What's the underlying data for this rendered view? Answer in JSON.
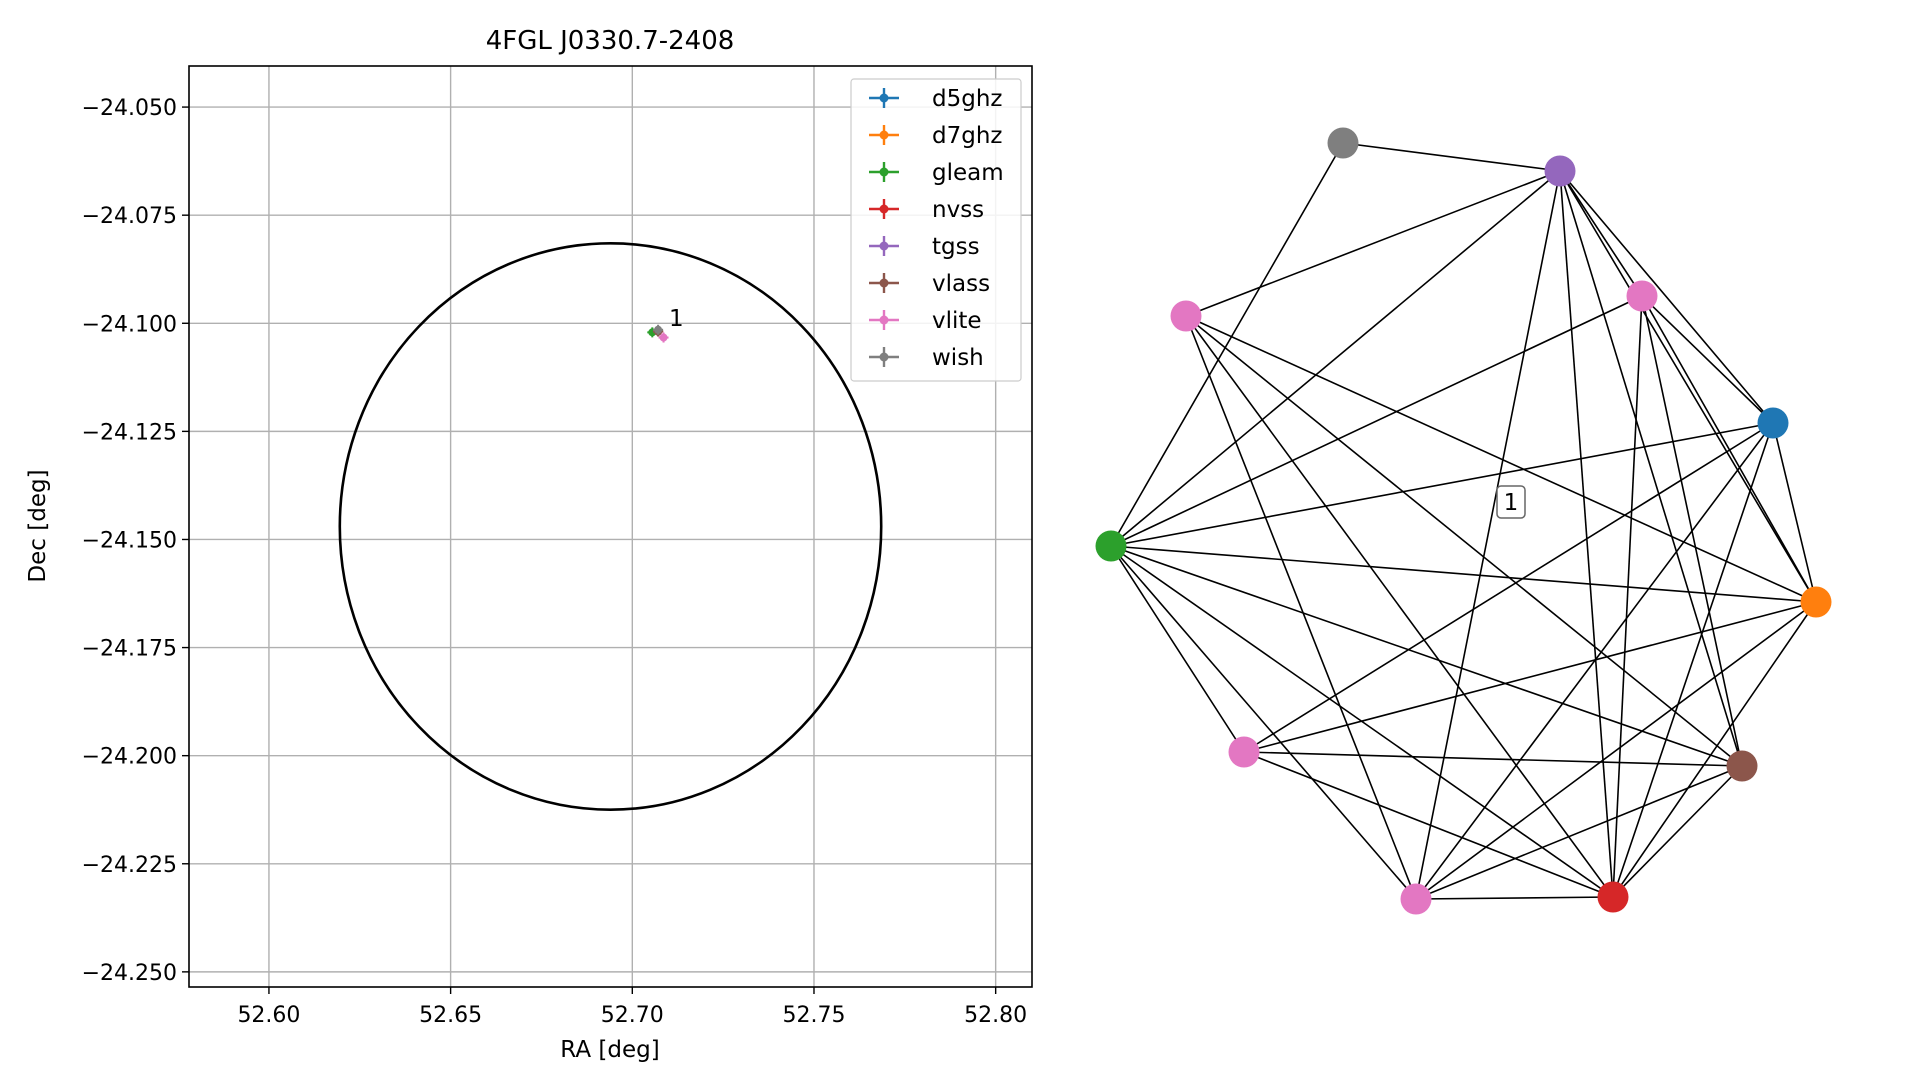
{
  "chart_data": [
    {
      "type": "scatter",
      "title": "4FGL J0330.7-2408",
      "xlabel": "RA [deg]",
      "ylabel": "Dec [deg]",
      "xlim": [
        52.578,
        52.81
      ],
      "ylim": [
        -24.2535,
        -24.0405
      ],
      "xticks": [
        52.6,
        52.65,
        52.7,
        52.75,
        52.8
      ],
      "xtick_labels": [
        "52.60",
        "52.65",
        "52.70",
        "52.75",
        "52.80"
      ],
      "yticks": [
        -24.05,
        -24.075,
        -24.1,
        -24.125,
        -24.15,
        -24.175,
        -24.2,
        -24.225,
        -24.25
      ],
      "ytick_labels": [
        "−24.050",
        "−24.075",
        "−24.100",
        "−24.125",
        "−24.150",
        "−24.175",
        "−24.200",
        "−24.225",
        "−24.250"
      ],
      "grid": true,
      "legend_position": "top-right",
      "ellipse": {
        "ra_center": 52.694,
        "dec_center": -24.147,
        "ra_semi_axis": 0.0745,
        "dec_semi_axis": 0.0655,
        "color": "#000000"
      },
      "series": [
        {
          "name": "d5ghz",
          "color": "#1f77b4",
          "ra": 52.7071,
          "dec": -24.1019
        },
        {
          "name": "d7ghz",
          "color": "#ff7f0e",
          "ra": 52.7071,
          "dec": -24.1019
        },
        {
          "name": "gleam",
          "color": "#2ca02c",
          "ra": 52.7055,
          "dec": -24.1021
        },
        {
          "name": "nvss",
          "color": "#d62728",
          "ra": 52.7071,
          "dec": -24.1019
        },
        {
          "name": "tgss",
          "color": "#9467bd",
          "ra": 52.7071,
          "dec": -24.1019
        },
        {
          "name": "vlass",
          "color": "#8c564b",
          "ra": 52.7071,
          "dec": -24.1019
        },
        {
          "name": "vlite",
          "color": "#e377c2",
          "ra": 52.7086,
          "dec": -24.1033
        },
        {
          "name": "wish",
          "color": "#7f7f7f",
          "ra": 52.7071,
          "dec": -24.1015
        }
      ],
      "annotations": [
        {
          "text": "1",
          "ra": 52.7101,
          "dec": -24.0993
        }
      ]
    },
    {
      "type": "network",
      "label": "1",
      "nodes": [
        {
          "id": "n0",
          "color": "#7f7f7f"
        },
        {
          "id": "n1",
          "color": "#9467bd"
        },
        {
          "id": "n2",
          "color": "#e377c2"
        },
        {
          "id": "n3",
          "color": "#e377c2"
        },
        {
          "id": "n4",
          "color": "#1f77b4"
        },
        {
          "id": "n5",
          "color": "#2ca02c"
        },
        {
          "id": "n6",
          "color": "#ff7f0e"
        },
        {
          "id": "n7",
          "color": "#e377c2"
        },
        {
          "id": "n8",
          "color": "#8c564b"
        },
        {
          "id": "n9",
          "color": "#e377c2"
        },
        {
          "id": "n10",
          "color": "#d62728"
        }
      ],
      "edges": [
        [
          "n0",
          "n1"
        ],
        [
          "n0",
          "n5"
        ],
        [
          "n1",
          "n2"
        ],
        [
          "n1",
          "n3"
        ],
        [
          "n1",
          "n4"
        ],
        [
          "n1",
          "n5"
        ],
        [
          "n1",
          "n6"
        ],
        [
          "n1",
          "n8"
        ],
        [
          "n1",
          "n9"
        ],
        [
          "n1",
          "n10"
        ],
        [
          "n2",
          "n4"
        ],
        [
          "n2",
          "n5"
        ],
        [
          "n2",
          "n6"
        ],
        [
          "n2",
          "n8"
        ],
        [
          "n2",
          "n10"
        ],
        [
          "n3",
          "n6"
        ],
        [
          "n3",
          "n8"
        ],
        [
          "n3",
          "n9"
        ],
        [
          "n3",
          "n10"
        ],
        [
          "n4",
          "n5"
        ],
        [
          "n4",
          "n6"
        ],
        [
          "n4",
          "n7"
        ],
        [
          "n4",
          "n9"
        ],
        [
          "n4",
          "n10"
        ],
        [
          "n5",
          "n6"
        ],
        [
          "n5",
          "n7"
        ],
        [
          "n5",
          "n8"
        ],
        [
          "n5",
          "n9"
        ],
        [
          "n5",
          "n10"
        ],
        [
          "n6",
          "n7"
        ],
        [
          "n6",
          "n9"
        ],
        [
          "n6",
          "n10"
        ],
        [
          "n7",
          "n8"
        ],
        [
          "n7",
          "n10"
        ],
        [
          "n8",
          "n9"
        ],
        [
          "n8",
          "n10"
        ],
        [
          "n9",
          "n10"
        ]
      ]
    }
  ]
}
